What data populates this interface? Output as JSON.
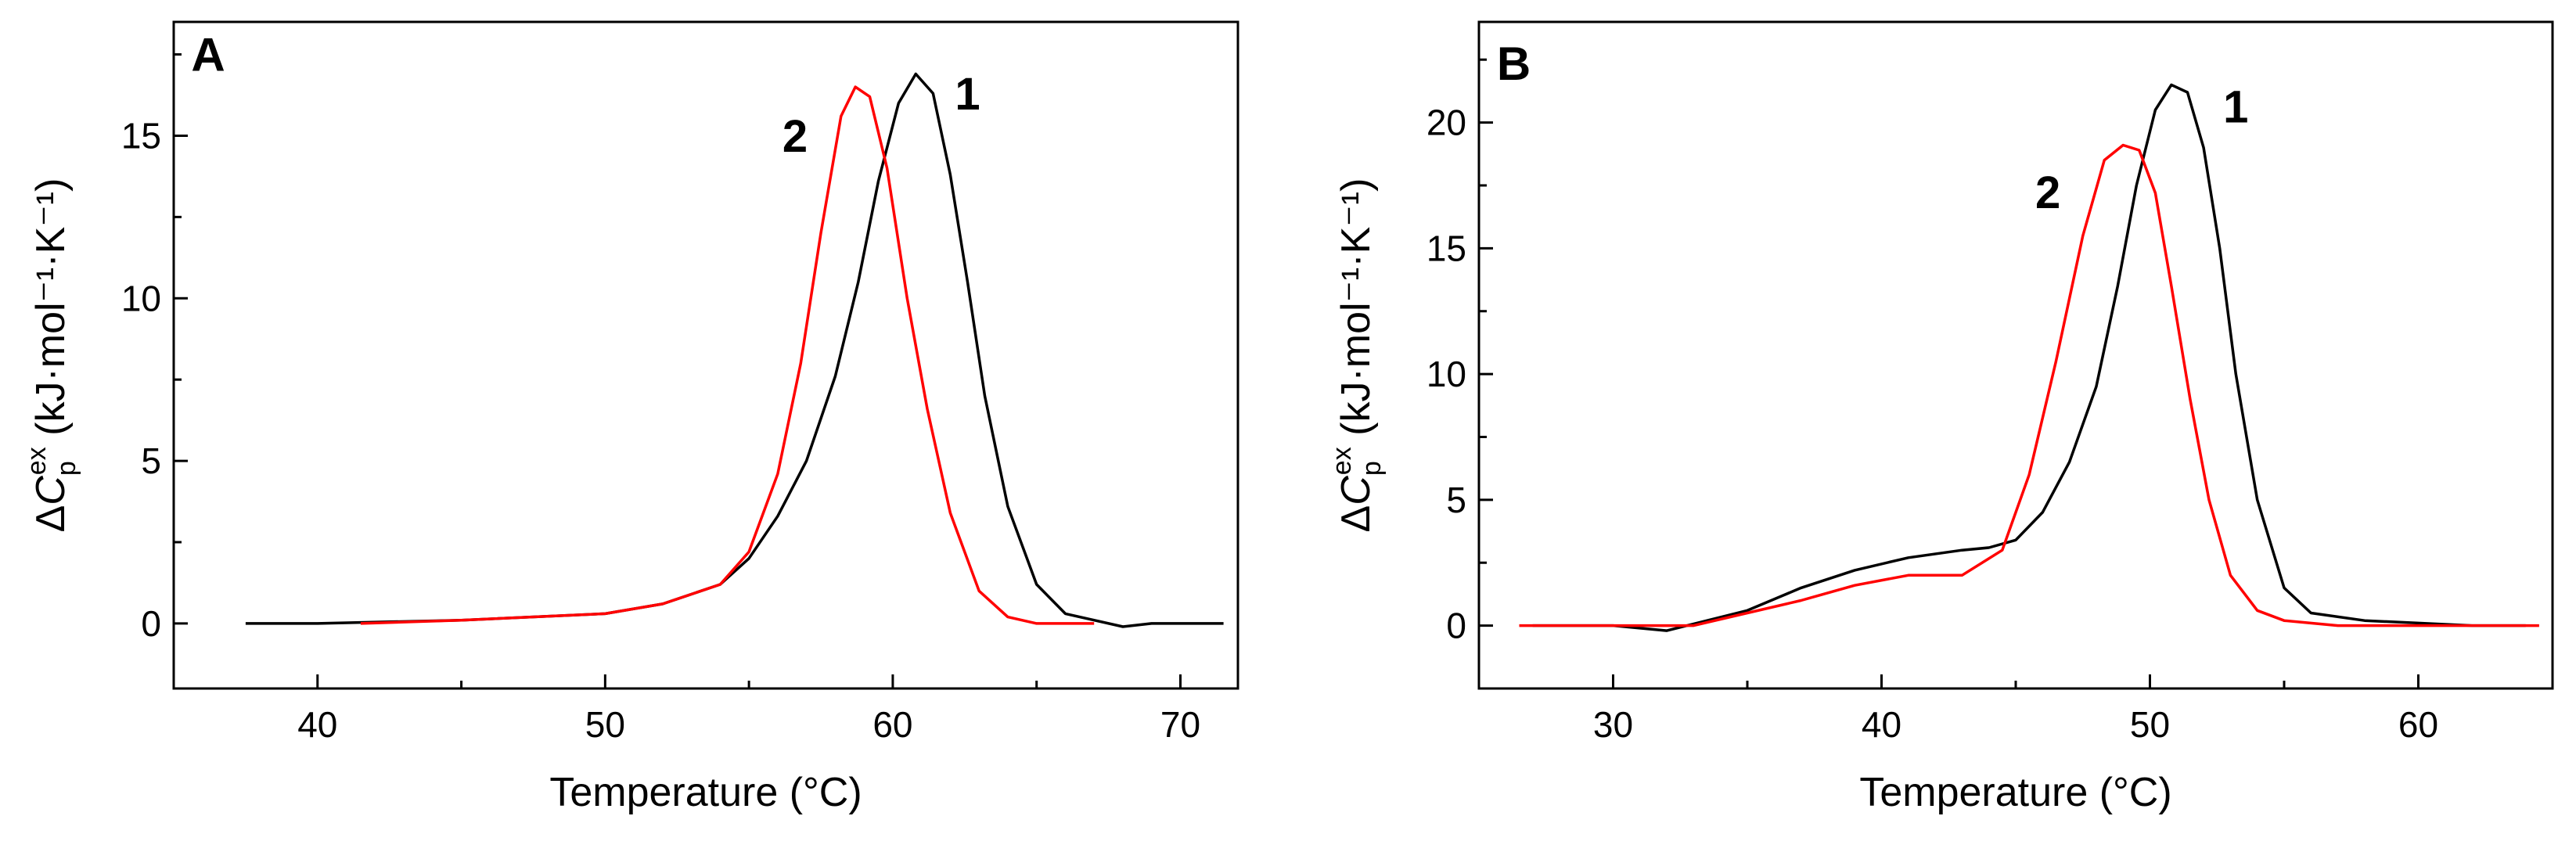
{
  "chart_data": [
    {
      "type": "line",
      "panel": "A",
      "xlabel": "Temperature (°C)",
      "ylabel": "ΔC_p^ex (kJ·mol⁻¹·K⁻¹)",
      "xlim": [
        35,
        72
      ],
      "ylim": [
        -2,
        18.5
      ],
      "xticks": [
        40,
        50,
        60,
        70
      ],
      "yticks": [
        0,
        5,
        10,
        15
      ],
      "series": [
        {
          "name": "1",
          "color": "#000000",
          "x": [
            37.5,
            40,
            45,
            50,
            52,
            54,
            55,
            56,
            57,
            58,
            58.8,
            59.5,
            60.2,
            60.8,
            61.4,
            62,
            62.6,
            63.2,
            64,
            65,
            66,
            67,
            68,
            69,
            70,
            71.5
          ],
          "y": [
            0,
            0,
            0.1,
            0.3,
            0.6,
            1.2,
            2.0,
            3.3,
            5.0,
            7.6,
            10.5,
            13.6,
            16.0,
            16.9,
            16.3,
            13.8,
            10.5,
            7.0,
            3.6,
            1.2,
            0.3,
            0.1,
            -0.1,
            0,
            0,
            0
          ]
        },
        {
          "name": "2",
          "color": "#ff0000",
          "x": [
            41.5,
            45,
            50,
            52,
            54,
            55,
            56,
            56.8,
            57.5,
            58.2,
            58.7,
            59.2,
            59.8,
            60.5,
            61.2,
            62,
            63,
            64,
            65,
            66,
            67
          ],
          "y": [
            0,
            0.1,
            0.3,
            0.6,
            1.2,
            2.2,
            4.6,
            8.0,
            12.0,
            15.6,
            16.5,
            16.2,
            14.0,
            10.0,
            6.6,
            3.4,
            1.0,
            0.2,
            0,
            0,
            0
          ]
        }
      ],
      "annotations": [
        {
          "text": "A",
          "x": 36.2,
          "y": 17.0
        },
        {
          "text": "1",
          "x": 62.6,
          "y": 15.8
        },
        {
          "text": "2",
          "x": 56.6,
          "y": 14.5
        }
      ]
    },
    {
      "type": "line",
      "panel": "B",
      "xlabel": "Temperature (°C)",
      "ylabel": "ΔC_p^ex (kJ·mol⁻¹·K⁻¹)",
      "xlim": [
        25,
        65
      ],
      "ylim": [
        -2.5,
        24
      ],
      "xticks": [
        30,
        40,
        50,
        60
      ],
      "yticks": [
        0,
        5,
        10,
        15,
        20
      ],
      "series": [
        {
          "name": "1",
          "color": "#000000",
          "x": [
            27,
            30,
            32,
            35,
            37,
            39,
            41,
            43,
            44,
            45,
            46,
            47,
            48,
            48.8,
            49.5,
            50.2,
            50.8,
            51.4,
            52,
            52.6,
            53.2,
            54,
            55,
            56,
            58,
            60,
            62,
            64
          ],
          "y": [
            0,
            0,
            -0.2,
            0.6,
            1.5,
            2.2,
            2.7,
            3.0,
            3.1,
            3.4,
            4.5,
            6.5,
            9.5,
            13.5,
            17.5,
            20.5,
            21.5,
            21.2,
            19.0,
            15.0,
            10.0,
            5.0,
            1.5,
            0.5,
            0.2,
            0.1,
            0,
            0
          ]
        },
        {
          "name": "2",
          "color": "#ff0000",
          "x": [
            26.5,
            30,
            33,
            35,
            37,
            39,
            41,
            43,
            44.5,
            45.5,
            46.5,
            47.5,
            48.3,
            49,
            49.6,
            50.2,
            50.8,
            51.5,
            52.2,
            53,
            54,
            55,
            57,
            60,
            62,
            64.5
          ],
          "y": [
            0,
            0,
            0,
            0.5,
            1.0,
            1.6,
            2.0,
            2.0,
            3.0,
            6.0,
            10.5,
            15.5,
            18.5,
            19.1,
            18.9,
            17.2,
            13.5,
            9.0,
            5.0,
            2.0,
            0.6,
            0.2,
            0,
            0,
            0,
            0
          ]
        }
      ],
      "annotations": [
        {
          "text": "B",
          "x": 26.3,
          "y": 21.7
        },
        {
          "text": "1",
          "x": 53.2,
          "y": 20.0
        },
        {
          "text": "2",
          "x": 46.2,
          "y": 16.6
        }
      ]
    }
  ]
}
